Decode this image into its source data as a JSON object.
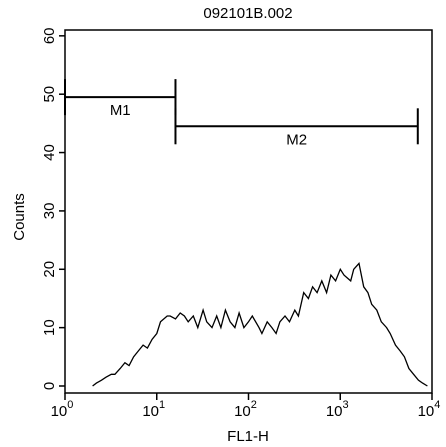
{
  "chart_data": {
    "type": "line",
    "title": "092101B.002",
    "x_label": "FL1-H",
    "y_label": "Counts",
    "xscale": "log",
    "xlim": [
      1,
      10000
    ],
    "xticks": [
      {
        "value": 1,
        "label": "10",
        "exponent": "0"
      },
      {
        "value": 10,
        "label": "10",
        "exponent": "1"
      },
      {
        "value": 100,
        "label": "10",
        "exponent": "2"
      },
      {
        "value": 1000,
        "label": "10",
        "exponent": "3"
      },
      {
        "value": 10000,
        "label": "10",
        "exponent": "4"
      }
    ],
    "ylim": [
      -1.2,
      61
    ],
    "yticks": [
      0,
      10,
      20,
      30,
      40,
      50,
      60
    ],
    "grid": false,
    "series": [
      {
        "name": null,
        "color": "#000000",
        "x": [
          2,
          2.2,
          2.5,
          2.8,
          3.2,
          3.5,
          4,
          4.5,
          5,
          5.6,
          6.3,
          7.1,
          7.9,
          8.9,
          10,
          11,
          13,
          14,
          16,
          18,
          20,
          22,
          25,
          28,
          32,
          35,
          40,
          45,
          50,
          56,
          63,
          71,
          79,
          89,
          100,
          110,
          130,
          140,
          160,
          180,
          200,
          220,
          250,
          280,
          320,
          350,
          400,
          450,
          500,
          560,
          630,
          710,
          790,
          890,
          1000,
          1100,
          1300,
          1400,
          1600,
          1800,
          2000,
          2200,
          2500,
          2800,
          3200,
          3500,
          4000,
          4500,
          5000,
          5600,
          6300,
          7100,
          7900,
          8900
        ],
        "values": [
          0,
          0.5,
          1,
          1.5,
          2,
          2,
          3,
          4,
          3.5,
          5,
          6,
          7,
          6.5,
          8,
          9,
          11,
          12,
          12,
          11.5,
          12.5,
          12,
          11,
          12,
          10,
          13,
          11,
          10,
          12,
          10,
          13,
          11,
          10,
          12.5,
          10,
          11,
          12,
          10,
          9,
          11,
          10,
          9,
          11,
          12,
          11,
          13,
          12,
          16,
          15,
          17,
          16,
          18,
          16,
          19,
          18,
          20,
          19,
          18,
          20,
          21,
          17,
          16,
          14,
          13,
          11,
          10,
          9,
          7,
          6,
          5,
          3,
          2,
          1,
          0.5,
          0
        ]
      }
    ],
    "markers": [
      {
        "label": "M1",
        "start": 1,
        "end": 16,
        "y": 49.5
      },
      {
        "label": "M2",
        "start": 16,
        "end": 7000,
        "y": 44.5
      }
    ]
  }
}
